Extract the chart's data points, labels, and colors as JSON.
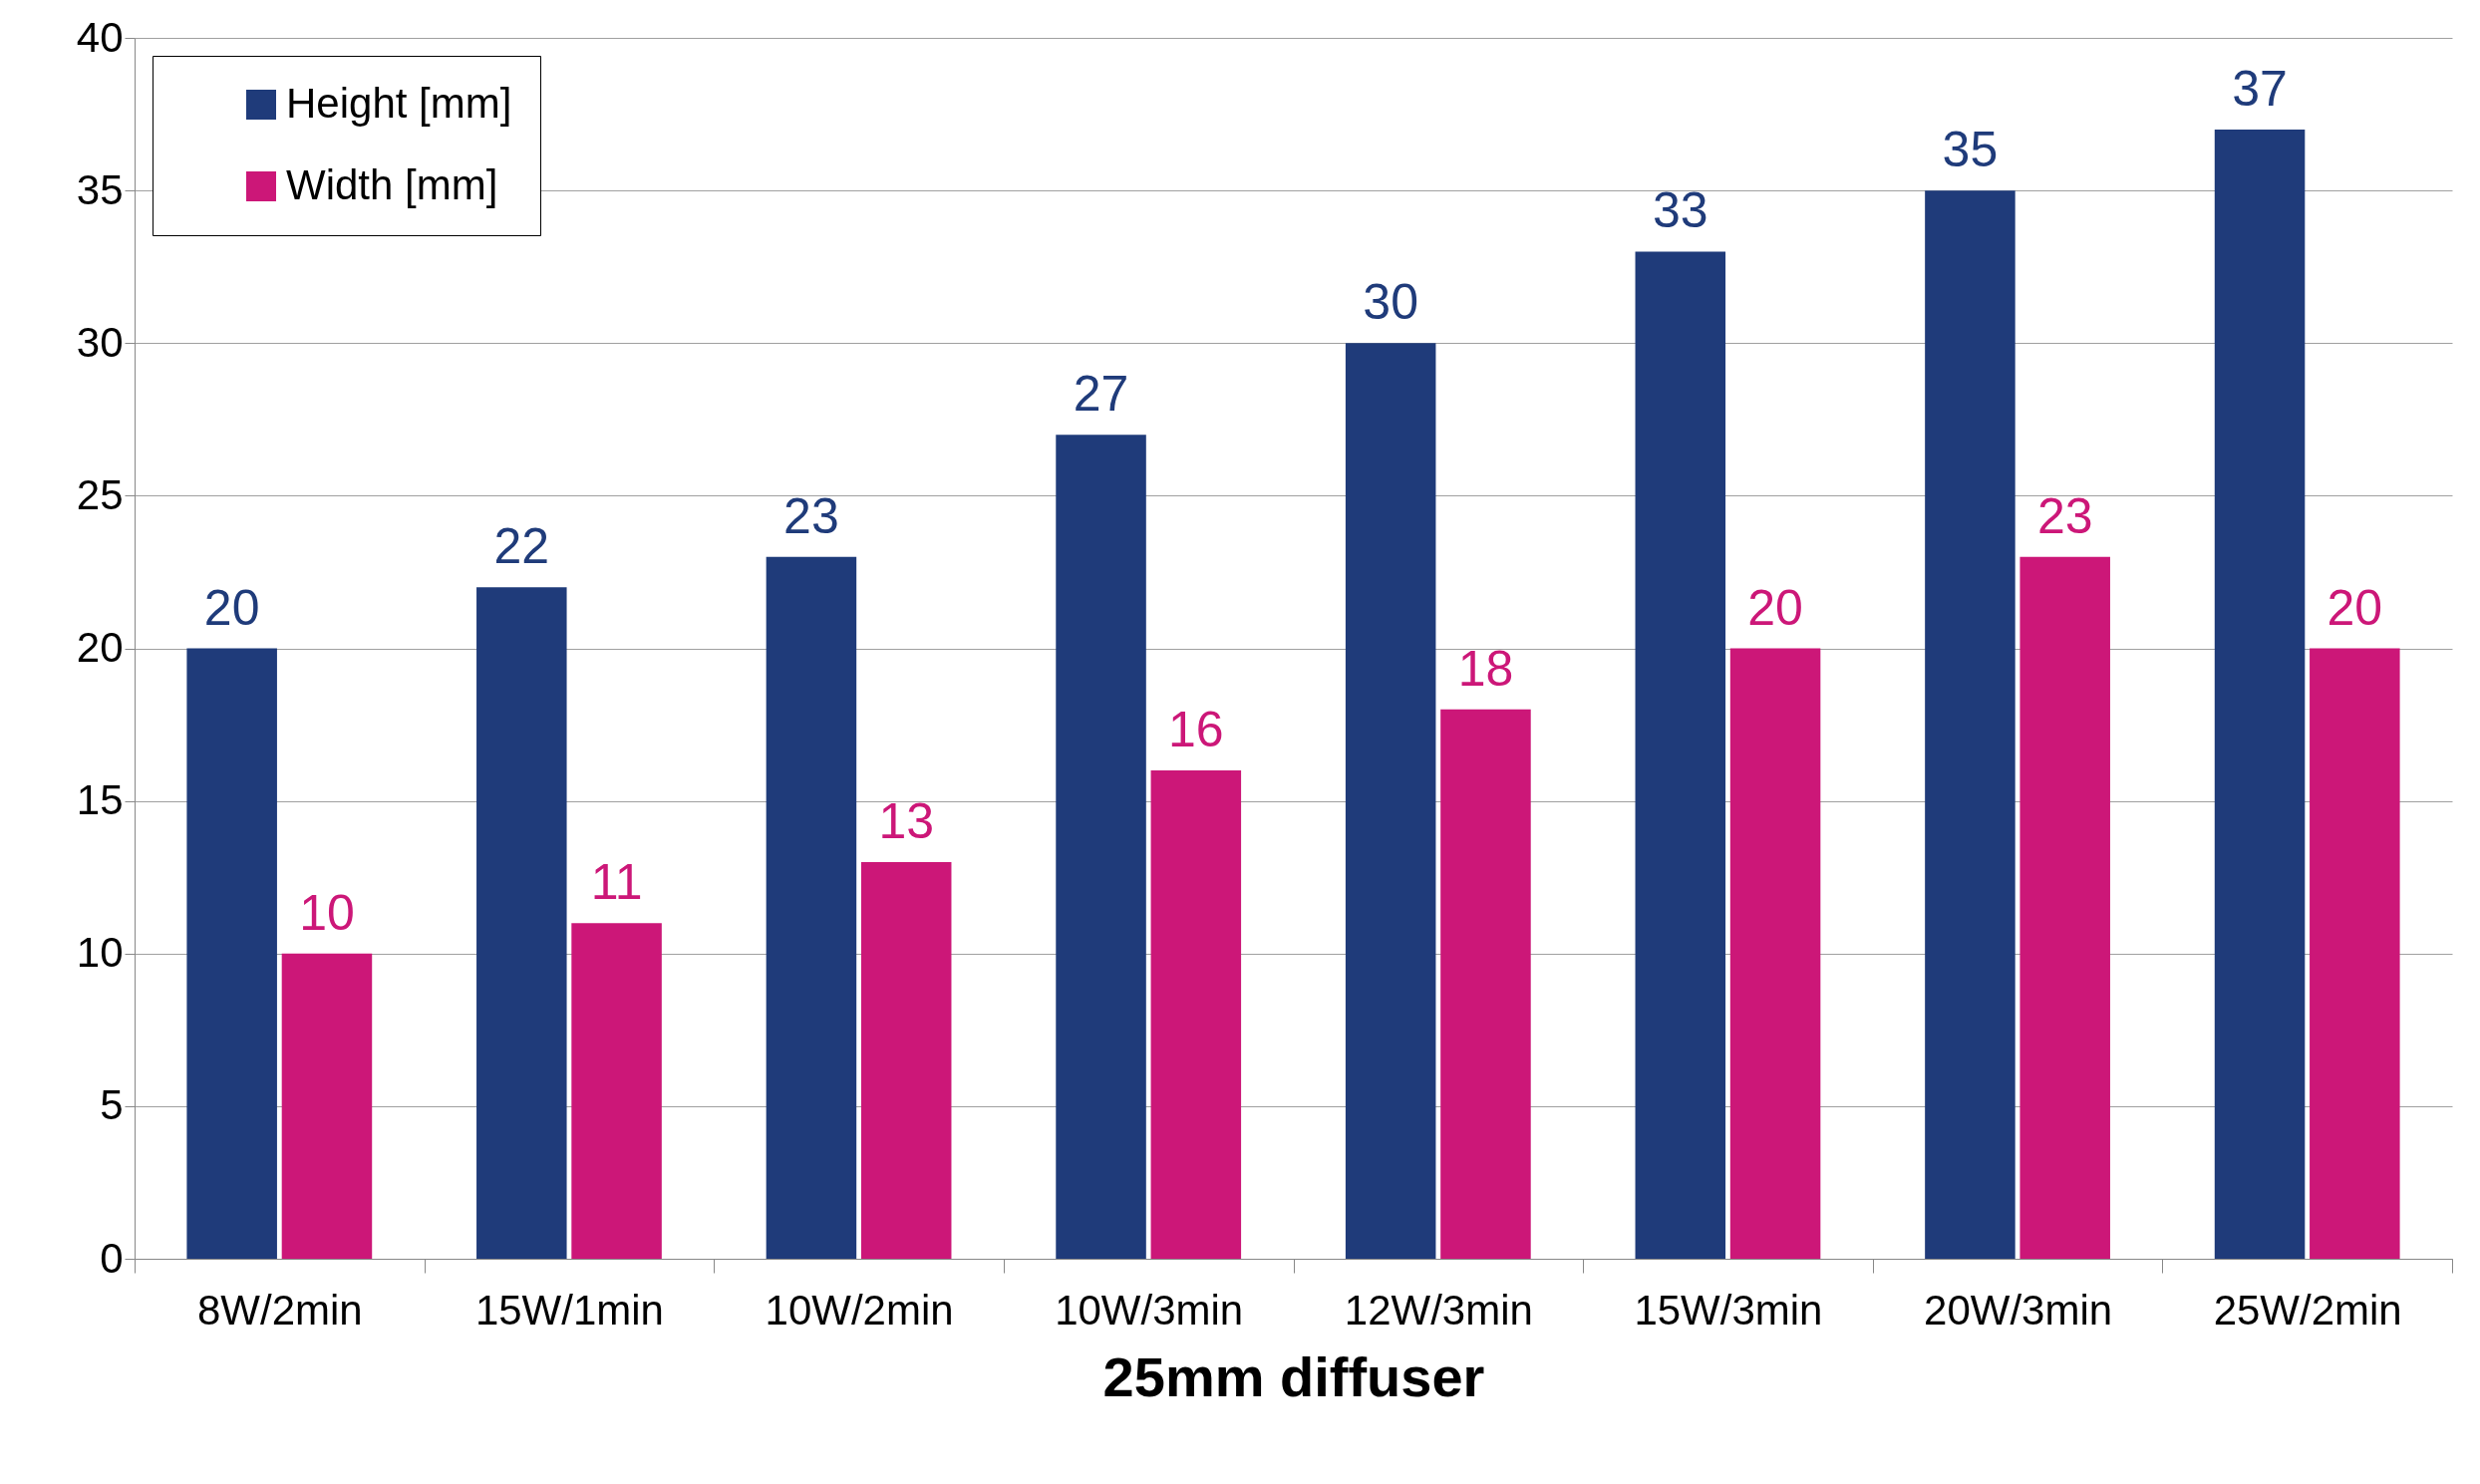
{
  "chart_data": {
    "type": "bar",
    "xlabel": "25mm diffuser",
    "categories": [
      "8W/2min",
      "15W/1min",
      "10W/2min",
      "10W/3min",
      "12W/3min",
      "15W/3min",
      "20W/3min",
      "25W/2min"
    ],
    "series": [
      {
        "name": "Height [mm]",
        "color": "#1f3b7a",
        "values": [
          20,
          22,
          23,
          27,
          30,
          33,
          35,
          37
        ]
      },
      {
        "name": "Width [mm]",
        "color": "#cc1778",
        "values": [
          10,
          11,
          13,
          16,
          18,
          20,
          23,
          20
        ]
      }
    ],
    "ylim": [
      0,
      40
    ],
    "yticks": [
      0,
      5,
      10,
      15,
      20,
      25,
      30,
      35,
      40
    ],
    "grid": "y",
    "legend": "top left",
    "data_labels": true
  }
}
